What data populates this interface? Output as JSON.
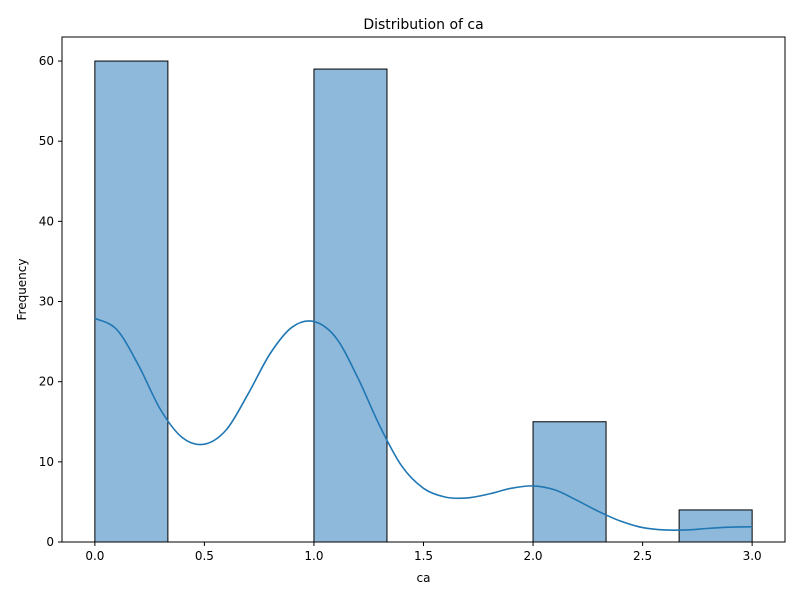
{
  "chart_data": {
    "type": "bar",
    "title": "Distribution of ca",
    "xlabel": "ca",
    "ylabel": "Frequency",
    "xlim": [
      -0.15,
      3.15
    ],
    "ylim": [
      0,
      63
    ],
    "bin_edges": [
      0,
      0.3333,
      0.6667,
      1.0,
      1.3333,
      1.6667,
      2.0,
      2.3333,
      2.6667,
      3.0
    ],
    "values": [
      60,
      0,
      0,
      59,
      0,
      0,
      15,
      0,
      4
    ],
    "x_ticks": [
      0.0,
      0.5,
      1.0,
      1.5,
      2.0,
      2.5,
      3.0
    ],
    "x_tick_labels": [
      "0.0",
      "0.5",
      "1.0",
      "1.5",
      "2.0",
      "2.5",
      "3.0"
    ],
    "y_ticks": [
      0,
      10,
      20,
      30,
      40,
      50,
      60
    ],
    "y_tick_labels": [
      "0",
      "10",
      "20",
      "30",
      "40",
      "50",
      "60"
    ],
    "kde": {
      "x": [
        0.0,
        0.1,
        0.2,
        0.3,
        0.4,
        0.5,
        0.6,
        0.7,
        0.8,
        0.9,
        1.0,
        1.1,
        1.2,
        1.3,
        1.4,
        1.5,
        1.6,
        1.7,
        1.8,
        1.9,
        2.0,
        2.1,
        2.2,
        2.3,
        2.4,
        2.5,
        2.6,
        2.7,
        2.8,
        2.9,
        3.0
      ],
      "y": [
        27.9,
        26.5,
        22.0,
        16.5,
        13.0,
        12.2,
        14.0,
        18.5,
        23.5,
        26.8,
        27.5,
        25.5,
        20.5,
        14.5,
        9.5,
        6.7,
        5.6,
        5.5,
        6.0,
        6.7,
        7.0,
        6.5,
        5.2,
        3.8,
        2.6,
        1.8,
        1.5,
        1.5,
        1.7,
        1.85,
        1.9
      ]
    },
    "grid": false,
    "colors": {
      "bar_fill": "#8fb9da",
      "bar_edge": "#000000",
      "kde_line": "#1f77b4"
    }
  }
}
